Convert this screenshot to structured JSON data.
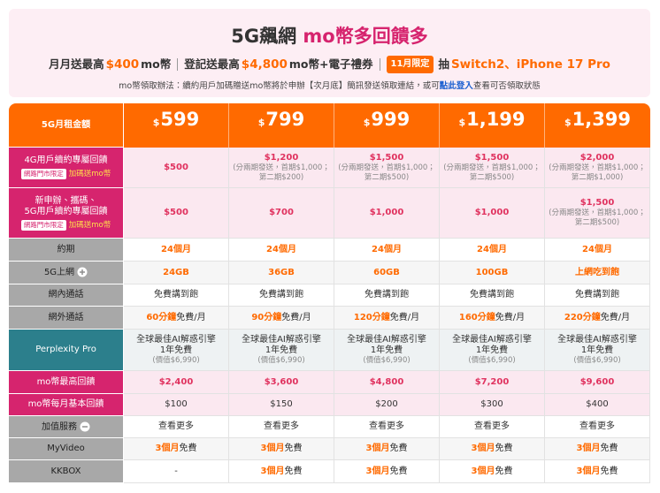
{
  "header": {
    "title": {
      "main": "5G飆網",
      "highlight": "mo幣多回饋多"
    },
    "promo": [
      [
        {
          "text": "月月送最高"
        },
        {
          "hl": "$400"
        },
        {
          "text": "mo幣"
        }
      ],
      [
        {
          "text": "登記送最高"
        },
        {
          "hl": "$4,800"
        },
        {
          "text": "mo幣+電子禮券"
        }
      ],
      [
        {
          "badge": "11月限定"
        },
        {
          "text": "抽"
        },
        {
          "hl": "Switch2、iPhone 17 Pro"
        }
      ]
    ],
    "note": {
      "text": "mo幣領取辦法：續約用戶加碼贈送mo幣將於申辦【次月底】簡訊發送領取連結，或可",
      "link": "點此登入",
      "after": "查看可否領取狀態"
    }
  },
  "table": {
    "header": {
      "label": "5G月租金額",
      "prices": [
        {
          "currency": "$",
          "amount": "599"
        },
        {
          "currency": "$",
          "amount": "799"
        },
        {
          "currency": "$",
          "amount": "999"
        },
        {
          "currency": "$",
          "amount": "1,199"
        },
        {
          "currency": "$",
          "amount": "1,399"
        }
      ]
    },
    "rows": [
      {
        "label": [
          "4G用戶續約專屬回饋"
        ],
        "badge": "網路門市限定",
        "badge_text": "加碼送mo幣",
        "cells": [
          {
            "hl": "$500"
          },
          {
            "hl": "$1,200",
            "note": "(分兩期發送，首期$1,000；第二期$200)"
          },
          {
            "hl": "$1,500",
            "note": "(分兩期發送，首期$1,000；第二期$500)"
          },
          {
            "hl": "$1,500",
            "note": "(分兩期發送，首期$1,000；第二期$500)"
          },
          {
            "hl": "$2,000",
            "note": "(分兩期發送，首期$1,000；第二期$1,000)"
          }
        ]
      },
      {
        "label": [
          "新申辦、攜碼、",
          "5G用戶續約專屬回饋"
        ],
        "badge": "網路門市限定",
        "badge_text": "加碼送mo幣",
        "cells": [
          {
            "hl": "$500"
          },
          {
            "hl": "$700"
          },
          {
            "hl": "$1,000"
          },
          {
            "hl": "$1,000"
          },
          {
            "hl": "$1,500",
            "note": "(分兩期發送，首期$1,000；第二期$500)"
          }
        ]
      },
      {
        "label": [
          "約期"
        ],
        "cells": [
          {
            "hl": "24個月"
          },
          {
            "hl": "24個月"
          },
          {
            "hl": "24個月"
          },
          {
            "hl": "24個月"
          },
          {
            "hl": "24個月"
          }
        ]
      },
      {
        "label": [
          "5G上網"
        ],
        "cells": [
          {
            "hl": "24GB"
          },
          {
            "hl": "36GB"
          },
          {
            "hl": "60GB"
          },
          {
            "hl": "100GB"
          },
          {
            "hl": "上網吃到飽"
          }
        ]
      },
      {
        "label": [
          "網內通話"
        ],
        "cells": [
          {
            "text": "免費講到飽"
          },
          {
            "text": "免費講到飽"
          },
          {
            "text": "免費講到飽"
          },
          {
            "text": "免費講到飽"
          },
          {
            "text": "免費講到飽"
          }
        ]
      },
      {
        "label": [
          "網外通話"
        ],
        "cells": [
          {
            "hl": "60分鐘",
            "text": "免費/月"
          },
          {
            "hl": "90分鐘",
            "text": "免費/月"
          },
          {
            "hl": "120分鐘",
            "text": "免費/月"
          },
          {
            "hl": "160分鐘",
            "text": "免費/月"
          },
          {
            "hl": "220分鐘",
            "text": "免費/月"
          }
        ]
      },
      {
        "label": [
          "Perplexity Pro"
        ],
        "cells": [
          {
            "lines": [
              "全球最佳AI解惑引擎",
              "1年免費"
            ],
            "note": "(價值$6,990)"
          },
          {
            "lines": [
              "全球最佳AI解惑引擎",
              "1年免費"
            ],
            "note": "(價值$6,990)"
          },
          {
            "lines": [
              "全球最佳AI解惑引擎",
              "1年免費"
            ],
            "note": "(價值$6,990)"
          },
          {
            "lines": [
              "全球最佳AI解惑引擎",
              "1年免費"
            ],
            "note": "(價值$6,990)"
          },
          {
            "lines": [
              "全球最佳AI解惑引擎",
              "1年免費"
            ],
            "note": "(價值$6,990)"
          }
        ]
      },
      {
        "label": [
          "mo幣最高回饋"
        ],
        "cells": [
          {
            "hl": "$2,400"
          },
          {
            "hl": "$3,600"
          },
          {
            "hl": "$4,800"
          },
          {
            "hl": "$7,200"
          },
          {
            "hl": "$9,600"
          }
        ]
      },
      {
        "label": [
          "mo幣每月基本回饋"
        ],
        "cells": [
          {
            "text": "$100"
          },
          {
            "text": "$150"
          },
          {
            "text": "$200"
          },
          {
            "text": "$300"
          },
          {
            "text": "$400"
          }
        ]
      },
      {
        "label": [
          "加值服務"
        ],
        "cells": [
          {
            "text": "查看更多"
          },
          {
            "text": "查看更多"
          },
          {
            "text": "查看更多"
          },
          {
            "text": "查看更多"
          },
          {
            "text": "查看更多"
          }
        ]
      },
      {
        "label": [
          "MyVideo"
        ],
        "cells": [
          {
            "hl": "3個月",
            "text": "免費"
          },
          {
            "hl": "3個月",
            "text": "免費"
          },
          {
            "hl": "3個月",
            "text": "免費"
          },
          {
            "hl": "3個月",
            "text": "免費"
          },
          {
            "hl": "3個月",
            "text": "免費"
          }
        ]
      },
      {
        "label": [
          "KKBOX"
        ],
        "cells": [
          {
            "text": "-"
          },
          {
            "hl": "3個月",
            "text": "免費"
          },
          {
            "hl": "3個月",
            "text": "免費"
          },
          {
            "hl": "3個月",
            "text": "免費"
          },
          {
            "hl": "3個月",
            "text": "免費"
          }
        ]
      }
    ]
  }
}
